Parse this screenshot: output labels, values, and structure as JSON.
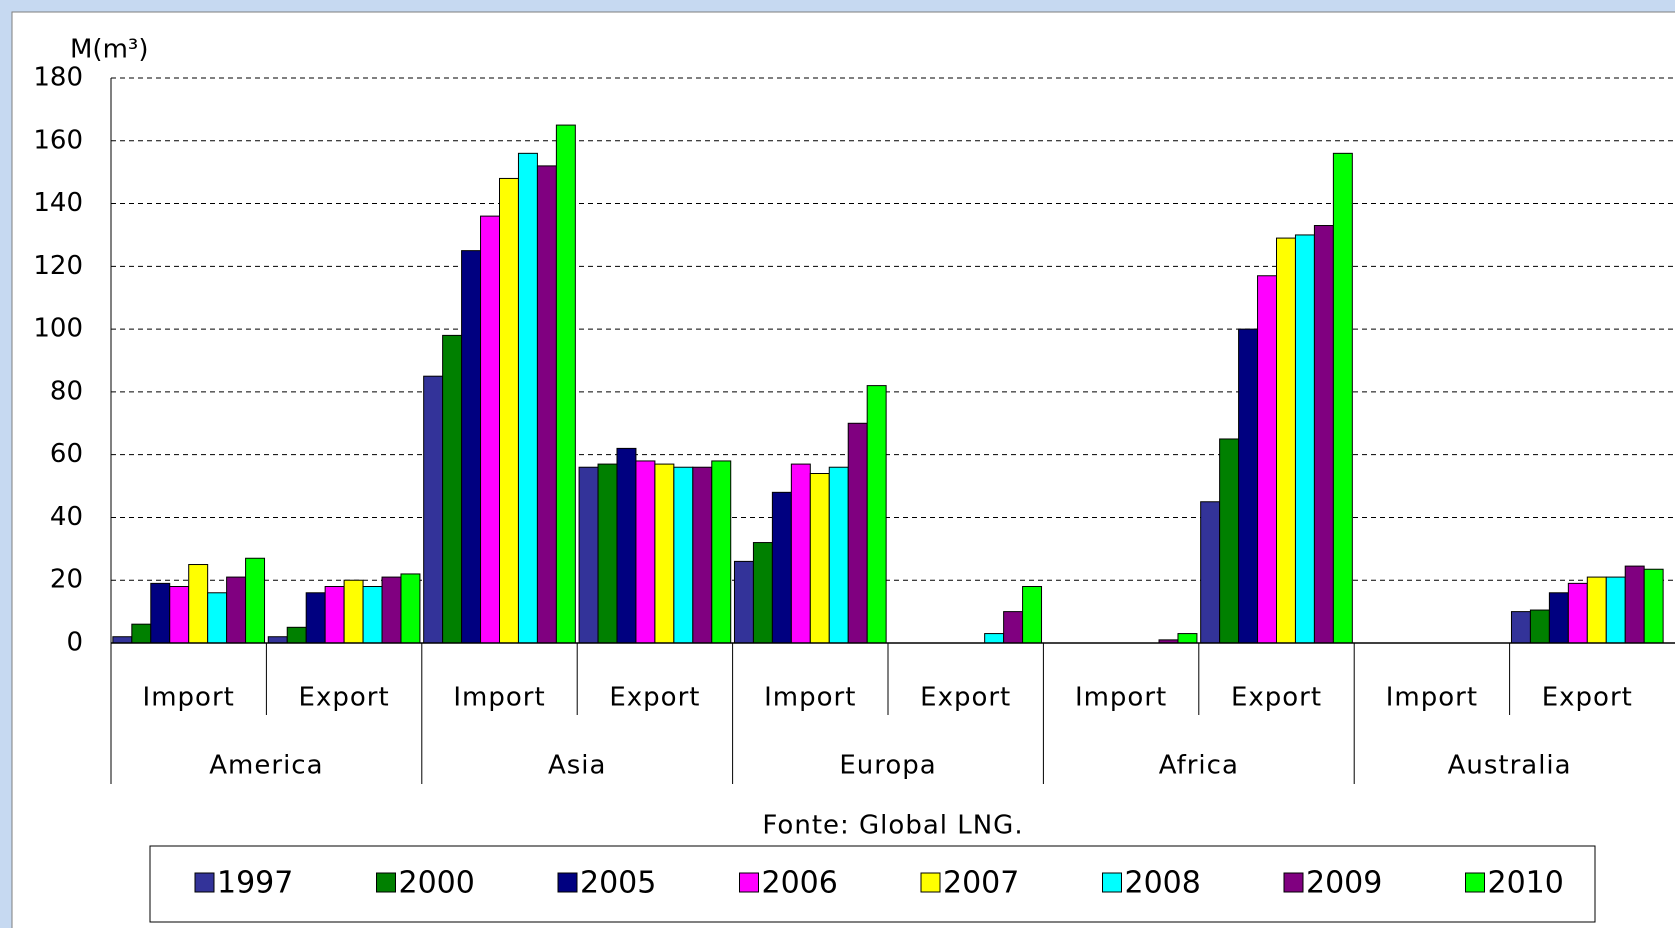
{
  "chart_data": {
    "type": "bar",
    "y_label": "M(m³)",
    "source": "Fonte: Global LNG.",
    "categories": [
      "Import",
      "Export",
      "Import",
      "Export",
      "Import",
      "Export",
      "Import",
      "Export",
      "Import",
      "Export"
    ],
    "groups": [
      "America",
      "Asia",
      "Europa",
      "Africa",
      "Australia"
    ],
    "series": [
      {
        "name": "1997",
        "color": "#333399",
        "values": [
          2,
          2,
          85,
          56,
          26,
          0,
          0,
          45,
          0,
          10
        ]
      },
      {
        "name": "2000",
        "color": "#008000",
        "values": [
          6,
          5,
          98,
          57,
          32,
          0,
          0,
          65,
          0,
          10.5
        ]
      },
      {
        "name": "2005",
        "color": "#000080",
        "values": [
          19,
          16,
          125,
          62,
          48,
          0,
          0,
          100,
          0,
          16
        ]
      },
      {
        "name": "2006",
        "color": "#ff00ff",
        "values": [
          18,
          18,
          136,
          58,
          57,
          0,
          0,
          117,
          0,
          19
        ]
      },
      {
        "name": "2007",
        "color": "#ffff00",
        "values": [
          25,
          20,
          148,
          57,
          54,
          0,
          0,
          129,
          0,
          21
        ]
      },
      {
        "name": "2008",
        "color": "#00ffff",
        "values": [
          16,
          18,
          156,
          56,
          56,
          3,
          0,
          130,
          0,
          21
        ]
      },
      {
        "name": "2009",
        "color": "#800080",
        "values": [
          21,
          21,
          152,
          56,
          70,
          10,
          1,
          133,
          0,
          24.5
        ]
      },
      {
        "name": "2010",
        "color": "#00ff00",
        "values": [
          27,
          22,
          165,
          58,
          82,
          18,
          3,
          156,
          0,
          23.5
        ]
      }
    ],
    "ylim": [
      0,
      180
    ],
    "yticks": [
      0,
      20,
      40,
      60,
      80,
      100,
      120,
      140,
      160,
      180
    ],
    "grid": true
  }
}
